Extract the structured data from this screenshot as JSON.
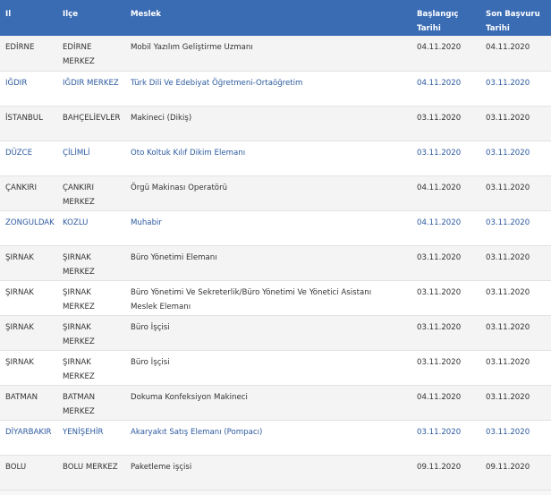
{
  "table": {
    "header": [
      "Il",
      "Ilçe",
      "Meslek",
      [
        "Başlangıç",
        "Tarihi"
      ],
      [
        "Son Başvuru",
        "Tarihi"
      ]
    ],
    "rows": [
      [
        "EDİRNE",
        [
          "EDİRNE",
          "MERKEZ"
        ],
        "Mobil Yazılım Geliştirme Uzmanı",
        "04.11.2020",
        "04.11.2020"
      ],
      [
        "IĞDIR",
        "IĞDIR MERKEZ",
        "Türk Dili Ve Edebiyat Öğretmeni-Ortaöğretim",
        "04.11.2020",
        "03.11.2020"
      ],
      [
        "İSTANBUL",
        "BAHÇELİEVLER",
        "Makineci (Dikiş)",
        "03.11.2020",
        "03.11.2020"
      ],
      [
        "DÜZCE",
        "ÇİLİMLİ",
        "Oto Koltuk Kılıf Dikim Elemanı",
        "03.11.2020",
        "03.11.2020"
      ],
      [
        "ÇANKIRI",
        [
          "ÇANKIRI",
          "MERKEZ"
        ],
        "Örgü Makinası Operatörü",
        "04.11.2020",
        "03.11.2020"
      ],
      [
        "ZONGULDAK",
        "KOZLU",
        "Muhabir",
        "04.11.2020",
        "03.11.2020"
      ],
      [
        "ŞIRNAK",
        [
          "ŞIRNAK",
          "MERKEZ"
        ],
        "Büro Yönetimi Elemanı",
        "03.11.2020",
        "03.11.2020"
      ],
      [
        "ŞIRNAK",
        [
          "ŞIRNAK",
          "MERKEZ"
        ],
        [
          "Büro Yönetimi Ve Sekreterlik/Büro Yönetimi Ve Yönetici Asistanı",
          "Meslek Elemanı"
        ],
        "03.11.2020",
        "03.11.2020"
      ],
      [
        "ŞIRNAK",
        [
          "ŞIRNAK",
          "MERKEZ"
        ],
        "Büro İşçisi",
        "03.11.2020",
        "03.11.2020"
      ],
      [
        "ŞIRNAK",
        [
          "ŞIRNAK",
          "MERKEZ"
        ],
        "Büro İşçisi",
        "03.11.2020",
        "03.11.2020"
      ],
      [
        "BATMAN",
        [
          "BATMAN",
          "MERKEZ"
        ],
        "Dokuma Konfeksiyon Makineci",
        "04.11.2020",
        "03.11.2020"
      ],
      [
        "DİYARBAKIR",
        "YENİŞEHİR",
        "Akaryakıt Satış Elemanı (Pompacı)",
        "03.11.2020",
        "03.11.2020"
      ],
      [
        "BOLU",
        "BOLU MERKEZ",
        "Paketleme işçisi",
        "09.11.2020",
        "09.11.2020"
      ]
    ]
  }
}
